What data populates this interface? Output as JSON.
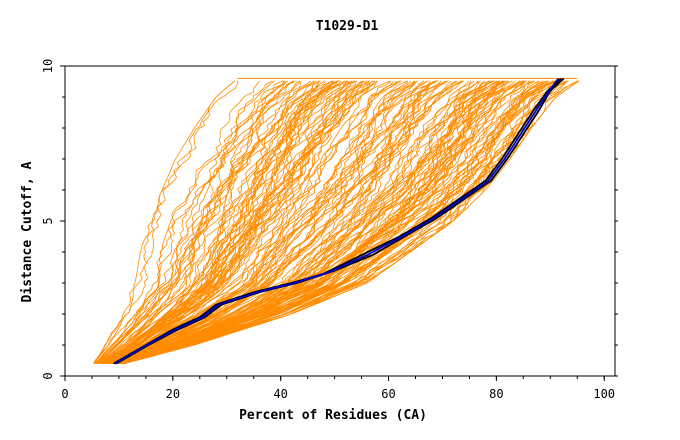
{
  "chart_data": {
    "type": "line",
    "title": "T1029-D1",
    "xlabel": "Percent of Residues (CA)",
    "ylabel": "Distance Cutoff, A",
    "xlim": [
      0,
      102
    ],
    "ylim": [
      0,
      10
    ],
    "x_ticks": [
      0,
      20,
      40,
      60,
      80,
      100
    ],
    "y_ticks": [
      0,
      5,
      10
    ],
    "grid": false,
    "legend": "none",
    "colors": {
      "models": "#ff8c00",
      "highlight_black": "#000000",
      "highlight_blue": "#0000cc"
    },
    "envelope": {
      "cutoffs": [
        0.4,
        1.0,
        2.0,
        3.0,
        4.0,
        5.0,
        6.0,
        7.0,
        8.0,
        9.0,
        9.6
      ],
      "left_x": [
        5,
        7,
        10,
        13,
        14,
        15.5,
        18,
        20.5,
        24,
        28,
        32
      ],
      "right_x": [
        11,
        24,
        42,
        56,
        64,
        72,
        78,
        82.5,
        86.5,
        91,
        96
      ]
    },
    "series": [
      {
        "color": "black",
        "x": [
          9,
          15,
          20,
          25,
          28,
          35,
          42,
          48,
          55,
          62,
          68,
          73,
          78,
          81,
          84,
          87,
          89.5,
          92
        ],
        "y": [
          0.4,
          1.0,
          1.5,
          1.9,
          2.3,
          2.7,
          3.0,
          3.3,
          3.9,
          4.5,
          5.1,
          5.7,
          6.3,
          7.0,
          7.8,
          8.6,
          9.2,
          9.6
        ]
      },
      {
        "color": "black",
        "x": [
          9.5,
          15.5,
          21,
          26,
          29,
          36,
          43,
          50,
          57,
          63,
          69,
          74,
          79,
          82,
          85,
          88,
          90,
          92.5
        ],
        "y": [
          0.4,
          1.0,
          1.5,
          1.9,
          2.3,
          2.7,
          3.0,
          3.4,
          3.9,
          4.5,
          5.1,
          5.7,
          6.3,
          7.0,
          7.8,
          8.6,
          9.2,
          9.6
        ]
      },
      {
        "color": "blue",
        "x": [
          9.2,
          15.2,
          20.5,
          25.5,
          28.5,
          35.5,
          42.5,
          49,
          56,
          62.5,
          68.5,
          73.5,
          78.5,
          81.5,
          84.5,
          87.5,
          89.8,
          91.5
        ],
        "y": [
          0.4,
          1.0,
          1.5,
          1.9,
          2.3,
          2.7,
          3.0,
          3.35,
          3.9,
          4.5,
          5.1,
          5.7,
          6.3,
          7.0,
          7.8,
          8.6,
          9.2,
          9.6
        ]
      }
    ]
  }
}
